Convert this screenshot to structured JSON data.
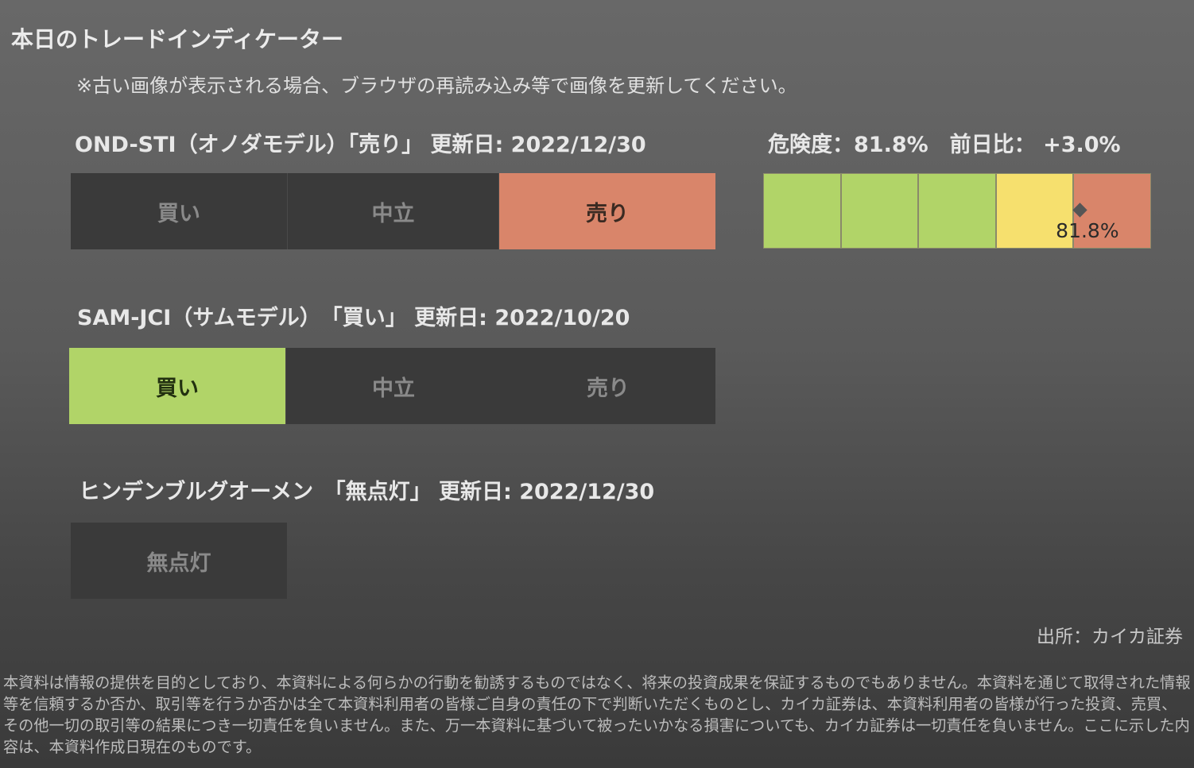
{
  "title": "本日のトレードインディケーター",
  "note": "※古い画像が表示される場合、ブラウザの再読み込み等で画像を更新してください。",
  "indicators": [
    {
      "header": "OND-STI（オノダモデル）「売り」 更新日: 2022/12/30",
      "options": [
        "買い",
        "中立",
        "売り"
      ],
      "active": "売り"
    },
    {
      "header": "SAM-JCI（サムモデル）　「買い」 更新日: 2022/10/20",
      "options": [
        "買い",
        "中立",
        "売り"
      ],
      "active": "買い"
    },
    {
      "header": "ヒンデンブルグオーメン　「無点灯」 更新日: 2022/12/30",
      "options": [
        "無点灯"
      ],
      "active": "無点灯"
    }
  ],
  "risk": {
    "header": "危険度：81.8%　前日比： +3.0%",
    "value_label": "81.8%",
    "value_percent": 81.8,
    "segment_colors": [
      "#b1d468",
      "#b1d468",
      "#b1d468",
      "#f6e06e",
      "#d9856a"
    ],
    "marker_color": "#555555"
  },
  "source": "出所：カイカ証券",
  "disclaimer": "本資料は情報の提供を目的としており、本資料による何らかの行動を勧誘するものではなく、将来の投資成果を保証するものでもありません。本資料を通じて取得された情報等を信頼するか否か、取引等を行うか否かは全て本資料利用者の皆様ご自身の責任の下で判断いただくものとし、カイカ証券は、本資料利用者の皆様が行った投資、売買、その他一切の取引等の結果につき一切責任を負いません。また、万一本資料に基づいて被ったいかなる損害についても、カイカ証券は一切責任を負いません。ここに示した内容は、本資料作成日現在のものです。"
}
